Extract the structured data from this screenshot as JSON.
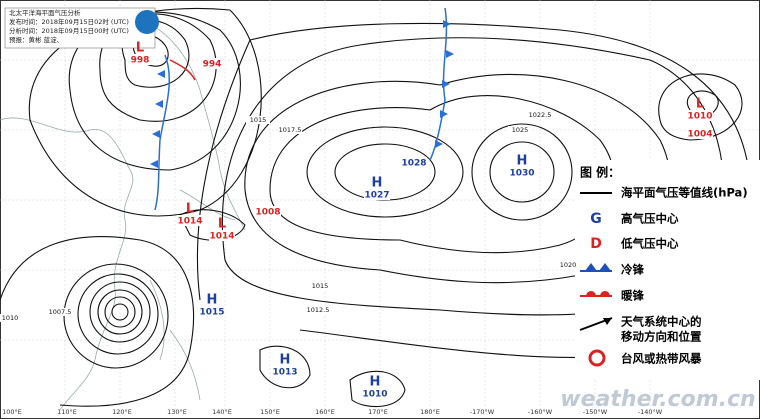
{
  "header": {
    "lines": [
      "北太平洋海平面气压分析",
      "发布时间：2018年09月15日02时 (UTC)",
      "分析时间：2018年09月15日00时 (UTC)",
      "预报：黄彬 蓝淀、"
    ]
  },
  "centers": [
    {
      "symbol": "L",
      "pressure": 998
    },
    {
      "symbol": "L",
      "pressure": 994
    },
    {
      "symbol": "L",
      "pressure": 1010
    },
    {
      "symbol": "L",
      "pressure": 1004
    },
    {
      "symbol": "H",
      "pressure": 1028
    },
    {
      "symbol": "H",
      "pressure": 1027
    },
    {
      "symbol": "H",
      "pressure": 1030
    },
    {
      "symbol": "L",
      "pressure": 1014
    },
    {
      "symbol": "L",
      "pressure": 1014
    },
    {
      "symbol": "L",
      "pressure": 1008
    },
    {
      "symbol": "H",
      "pressure": 1015
    },
    {
      "symbol": "H",
      "pressure": 1013
    },
    {
      "symbol": "H",
      "pressure": 1010
    }
  ],
  "isobar_labels": [
    1015,
    1017.5,
    1022.5,
    1025,
    1020,
    1015,
    1012.5,
    1007.5,
    1010
  ],
  "legend": {
    "title": "图 例：",
    "items": [
      "海平面气压等值线(hPa)",
      "高气压中心",
      "低气压中心",
      "冷锋",
      "暖锋",
      "天气系统中心的",
      "移动方向和位置",
      "台风或热带风暴"
    ],
    "high_symbol": "G",
    "low_symbol": "D"
  },
  "longitudes": [
    "100°E",
    "110°E",
    "120°E",
    "130°E",
    "140°E",
    "150°E",
    "160°E",
    "170°E",
    "180°E",
    "-170°W",
    "-160°W",
    "-150°W",
    "-140°W"
  ],
  "watermark": "weather.com.cn"
}
